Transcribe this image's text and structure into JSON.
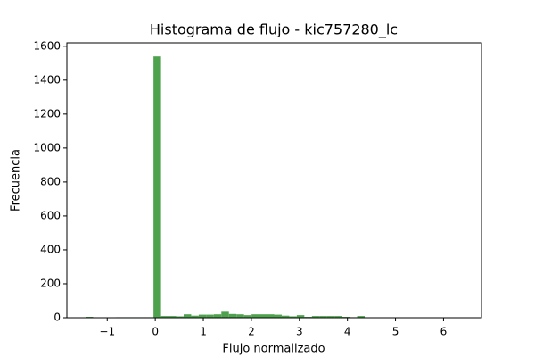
{
  "chart_data": {
    "type": "histogram",
    "title": "Histograma de flujo - kic757280_lc",
    "xlabel": "Flujo normalizado",
    "ylabel": "Frecuencia",
    "bins": [
      -1.45,
      -1.293,
      -1.136,
      -0.979,
      -0.822,
      -0.665,
      -0.508,
      -0.351,
      -0.194,
      -0.037,
      0.12,
      0.277,
      0.434,
      0.591,
      0.748,
      0.905,
      1.062,
      1.219,
      1.376,
      1.533,
      1.69,
      1.847,
      2.004,
      2.161,
      2.318,
      2.475,
      2.632,
      2.789,
      2.946,
      3.103,
      3.26,
      3.417,
      3.574,
      3.731,
      3.888,
      4.045,
      4.202,
      4.359,
      4.516,
      4.673,
      4.83,
      4.987,
      5.144,
      5.301,
      5.458,
      5.615,
      5.772,
      5.929,
      6.086,
      6.243,
      6.4
    ],
    "values": [
      5,
      0,
      0,
      0,
      3,
      3,
      3,
      3,
      3,
      1540,
      10,
      10,
      8,
      20,
      12,
      18,
      18,
      20,
      35,
      22,
      20,
      15,
      20,
      20,
      20,
      18,
      12,
      8,
      15,
      5,
      10,
      10,
      10,
      10,
      5,
      3,
      10,
      0,
      0,
      0,
      0,
      0,
      0,
      0,
      0,
      0,
      0,
      0,
      0,
      1
    ],
    "color": "#4ea24e",
    "xlim": [
      -1.84,
      6.79
    ],
    "ylim": [
      0,
      1620
    ],
    "xticks": [
      {
        "value": -1,
        "label": "−1"
      },
      0,
      1,
      2,
      3,
      4,
      5,
      6
    ],
    "yticks": [
      0,
      200,
      400,
      600,
      800,
      1000,
      1200,
      1400,
      1600
    ],
    "grid": false
  }
}
